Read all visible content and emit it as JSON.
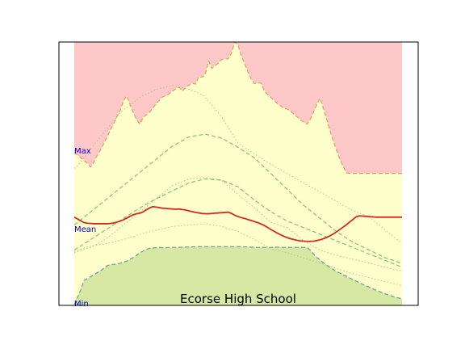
{
  "chart_data": {
    "type": "area",
    "title": "Ecorse High School",
    "xlabel": "",
    "ylabel": "",
    "grid": false,
    "ylim": [
      0,
      100
    ],
    "x": [
      0,
      1,
      2,
      3,
      4,
      5,
      6,
      7,
      8,
      9,
      10,
      11,
      12,
      13,
      14,
      15,
      16,
      17,
      18,
      19,
      20,
      21,
      22,
      23,
      24,
      25,
      26,
      27,
      28,
      29,
      30,
      31,
      32,
      33,
      34,
      35,
      36,
      37,
      38,
      39,
      40,
      41,
      42,
      43,
      44,
      45,
      46,
      47,
      48,
      49,
      50,
      51,
      52,
      53,
      54,
      55,
      56,
      57,
      58,
      59,
      60,
      61,
      62,
      63,
      64,
      65,
      66,
      67,
      68,
      69,
      70,
      71,
      72,
      73,
      74,
      75,
      76,
      77,
      78,
      79,
      80,
      81,
      82,
      83,
      84,
      85,
      86,
      87,
      88,
      89,
      90,
      91,
      92,
      93,
      94,
      95,
      96,
      97,
      98,
      99,
      100
    ],
    "y_labels": {
      "max": "Max",
      "mean": "Mean",
      "min": "Min"
    },
    "series": [
      {
        "role": "max",
        "values": [
          58,
          57,
          56,
          55,
          54,
          52.5,
          54.5,
          57,
          59,
          61.5,
          64,
          66.5,
          69,
          71.6,
          74,
          77.5,
          79.6,
          76.3,
          73.3,
          70.7,
          68.8,
          71.3,
          72.4,
          73.4,
          74.9,
          76.6,
          78,
          79.2,
          79.6,
          80.4,
          81.4,
          82.2,
          82.8,
          81.4,
          82.8,
          83.7,
          84.4,
          84,
          86.9,
          86.6,
          87.8,
          92.8,
          90,
          91,
          92,
          93.4,
          93.6,
          93.6,
          96,
          100,
          98.7,
          94.6,
          91.7,
          88.6,
          85.9,
          84.2,
          84.4,
          84.4,
          81.5,
          80,
          78.9,
          77.8,
          76.6,
          75.7,
          74.8,
          74.5,
          73.7,
          72.6,
          71.6,
          70.4,
          69.6,
          68.8,
          70.6,
          73.4,
          76.3,
          78.7,
          74.8,
          70.7,
          66.5,
          62.5,
          59.1,
          55.6,
          52.9,
          50.4,
          50.1,
          50.1,
          50.1,
          50.1,
          50.1,
          50.1,
          50.1,
          50.1,
          50.1,
          50.1,
          50.1,
          50.1,
          50.1,
          50.1,
          50.1,
          50.1,
          50.1
        ]
      },
      {
        "role": "p90",
        "values": [
          52,
          53,
          54.5,
          56,
          57.5,
          59.5,
          61,
          62.5,
          64,
          65.5,
          67,
          68.5,
          70,
          71.5,
          73,
          74.5,
          75,
          76,
          77,
          78,
          79,
          79.6,
          80.2,
          80.8,
          81.4,
          82,
          82.3,
          82.6,
          82.9,
          83.2,
          83.5,
          83.2,
          82.9,
          82.6,
          82.3,
          82,
          81.5,
          81,
          80.5,
          80,
          79,
          77.5,
          76,
          74.5,
          73,
          71.5,
          69.5,
          67.5,
          65.5,
          63.5,
          61.5,
          60.7,
          59.9,
          59.1,
          58.3,
          57.5,
          56.7,
          55.9,
          55.1,
          54.3,
          53.5,
          52.8,
          52.1,
          51.4,
          50.7,
          50,
          49.3,
          48.6,
          47.9,
          47.2,
          46.5,
          45.8,
          45.1,
          44.4,
          43.7,
          43,
          42.3,
          41.6,
          40.9,
          40.2,
          39.5,
          38.8,
          38.1,
          37.4,
          36.7,
          36,
          35.5,
          35,
          34.5,
          34,
          33.5,
          32.5,
          31.5,
          30.5,
          29.5,
          28.5,
          27.5,
          26.5,
          25.5,
          24.5,
          23.5
        ]
      },
      {
        "role": "p75",
        "values": [
          30.5,
          31.5,
          32.5,
          33.5,
          34.5,
          35.5,
          36.5,
          37.5,
          38.5,
          39.5,
          40.5,
          41.5,
          42.5,
          43.5,
          44.5,
          45.5,
          46.5,
          47.5,
          48.5,
          49.5,
          50.5,
          51.5,
          52.5,
          53.5,
          54.5,
          55.5,
          56.5,
          57.5,
          58.5,
          59.5,
          60.5,
          61.2,
          61.9,
          62.6,
          63.3,
          64,
          64.2,
          64.4,
          64.6,
          64.8,
          65,
          64.7,
          64.4,
          64.1,
          63.8,
          63.5,
          62.8,
          62.1,
          61.4,
          60.7,
          60,
          59.2,
          58.4,
          57.6,
          56.8,
          56,
          54.8,
          53.6,
          52.4,
          51.2,
          50,
          48.8,
          47.6,
          46.4,
          45.2,
          44,
          42.8,
          41.6,
          40.4,
          39.2,
          38,
          37,
          36,
          35,
          34,
          33,
          32,
          31,
          30,
          29,
          28,
          27.2,
          26.4,
          25.6,
          24.8,
          24,
          23.4,
          22.8,
          22.2,
          21.6,
          21,
          20.4,
          19.8,
          19.2,
          18.6,
          18,
          17.6,
          17.2,
          16.8,
          16.4,
          16
        ]
      },
      {
        "role": "p60",
        "values": [
          21,
          21.8,
          22.6,
          23.4,
          24.2,
          25,
          25.8,
          26.6,
          27.4,
          28.2,
          29,
          29.8,
          30.6,
          31.4,
          32.2,
          33,
          33.8,
          34.6,
          35.4,
          36.2,
          37,
          37.7,
          38.4,
          39.1,
          39.8,
          40.5,
          41.1,
          41.7,
          42.3,
          42.9,
          43.5,
          44.1,
          44.7,
          45.3,
          45.9,
          46.5,
          46.8,
          47.1,
          47.4,
          47.7,
          48,
          47.9,
          47.8,
          47.7,
          47.6,
          47.5,
          47,
          46.5,
          46,
          45.5,
          45,
          44,
          43,
          42,
          41,
          40,
          39.1,
          38.2,
          37.3,
          36.4,
          35.5,
          34.8,
          34.1,
          33.4,
          32.7,
          32,
          31.5,
          31,
          30.5,
          30,
          29.5,
          29,
          28.5,
          28,
          27.5,
          27,
          26.5,
          26,
          25.5,
          25,
          24.5,
          24,
          23.5,
          23,
          22.5,
          22,
          21.5,
          21,
          20.5,
          20,
          19.5,
          19,
          18.5,
          18,
          17.5,
          17,
          16.5,
          16,
          15.5,
          15,
          14.5
        ]
      },
      {
        "role": "mean",
        "values": [
          33.5,
          32.8,
          32.1,
          31.4,
          31.2,
          31.1,
          31.0,
          31.0,
          31.0,
          31.0,
          31.0,
          31.1,
          31.3,
          31.6,
          32.0,
          32.5,
          33.1,
          33.8,
          34.4,
          34.8,
          35.0,
          35.5,
          36.3,
          37.0,
          37.5,
          37.3,
          37.1,
          36.9,
          36.8,
          36.7,
          36.6,
          36.5,
          36.6,
          36.4,
          36.2,
          35.9,
          35.6,
          35.3,
          35.1,
          34.9,
          34.8,
          34.8,
          34.9,
          35.0,
          35.1,
          35.2,
          35.3,
          35.4,
          34.9,
          34.2,
          33.7,
          33.3,
          33.0,
          32.6,
          32.2,
          31.8,
          31.4,
          30.9,
          30.3,
          29.6,
          28.8,
          28.1,
          27.4,
          26.8,
          26.2,
          25.7,
          25.3,
          25.0,
          24.7,
          24.5,
          24.4,
          24.3,
          24.3,
          24.4,
          24.6,
          24.9,
          25.3,
          25.8,
          26.4,
          27.1,
          27.9,
          28.8,
          29.7,
          30.6,
          31.6,
          32.6,
          33.6,
          34.0,
          33.9,
          33.8,
          33.7,
          33.6,
          33.5,
          33.5,
          33.5,
          33.5,
          33.5,
          33.5,
          33.5,
          33.5,
          33.5
        ]
      },
      {
        "role": "p40",
        "values": [
          20,
          20.4,
          20.8,
          21.2,
          21.6,
          22,
          22.7,
          23.4,
          24.1,
          24.8,
          25.5,
          26.5,
          27.5,
          28.5,
          29.5,
          30.5,
          31.5,
          32.5,
          33.5,
          34.5,
          35.5,
          36.5,
          37.5,
          38.5,
          39.5,
          40.5,
          41.5,
          42.5,
          43.5,
          44.5,
          45.5,
          46,
          46.5,
          47,
          47.5,
          48,
          48.1,
          48.2,
          48.3,
          48.4,
          48.5,
          48.3,
          48.1,
          47.9,
          47.7,
          47.5,
          46.4,
          45.3,
          44.2,
          43.1,
          42,
          41,
          40,
          39,
          38,
          37,
          35.9,
          34.8,
          33.7,
          32.6,
          31.5,
          31.1,
          30.7,
          30.3,
          29.9,
          29.5,
          28.5,
          27.5,
          26.5,
          25.5,
          24.5,
          23.8,
          23.1,
          22.4,
          21.7,
          21,
          20.6,
          20.2,
          19.8,
          19.4,
          19,
          18.7,
          18.4,
          18.1,
          17.8,
          17.5,
          17.2,
          16.9,
          16.6,
          16.3,
          16,
          15.7,
          15.4,
          15.1,
          14.8,
          14.5,
          14.2,
          13.9,
          13.6,
          13.3,
          13
        ]
      },
      {
        "role": "p10",
        "values": [
          20.5,
          20.9,
          21.3,
          21.7,
          22.1,
          22.5,
          22.7,
          22.9,
          23.1,
          23.3,
          23.5,
          23.8,
          24.1,
          24.4,
          24.7,
          25,
          25.4,
          25.8,
          26.2,
          26.6,
          27,
          27.3,
          27.6,
          27.9,
          28.2,
          28.5,
          28.8,
          29.1,
          29.4,
          29.7,
          30,
          30.1,
          30.2,
          30.3,
          30.4,
          30.5,
          30.6,
          30.7,
          30.8,
          30.9,
          31,
          30.8,
          30.6,
          30.4,
          30.2,
          30,
          29.6,
          29.2,
          28.8,
          28.4,
          28,
          27.4,
          26.8,
          26.2,
          25.6,
          25,
          24.3,
          23.6,
          22.9,
          22.2,
          21.5,
          21.2,
          20.9,
          20.6,
          20.3,
          20,
          19.6,
          19.2,
          18.8,
          18.4,
          18,
          17.6,
          17.2,
          16.8,
          16.4,
          16,
          15.6,
          15.2,
          14.8,
          14.4,
          14,
          13.6,
          13.2,
          12.8,
          12.4,
          12,
          11.7,
          11.4,
          11.1,
          10.8,
          10.5,
          10.2,
          9.9,
          9.6,
          9.3,
          9,
          8.7,
          8.4,
          8.1,
          7.8,
          7.5
        ]
      },
      {
        "role": "min",
        "values": [
          0.3,
          3.0,
          6.0,
          9.5,
          10.2,
          10.9,
          11.6,
          12.4,
          13.2,
          14.1,
          15.0,
          15.5,
          15.6,
          15.6,
          16.0,
          16.4,
          16.8,
          17.5,
          18.2,
          19.0,
          20.0,
          20.6,
          21.3,
          21.7,
          21.8,
          21.9,
          22.0,
          21.9,
          21.9,
          22.0,
          22.0,
          22.0,
          22.0,
          22.1,
          22.1,
          22.2,
          22.2,
          22.2,
          22.3,
          22.3,
          22.3,
          22.3,
          22.3,
          22.3,
          22.3,
          22.3,
          22.3,
          22.3,
          22.3,
          22.3,
          22.3,
          22.3,
          22.2,
          22.2,
          22.1,
          22.1,
          22.0,
          22.0,
          22.0,
          22.0,
          22.0,
          22.1,
          22.1,
          22.0,
          22.0,
          22.0,
          22.0,
          22.0,
          22.0,
          22.0,
          22.0,
          22.0,
          21.0,
          19.5,
          18.2,
          17.2,
          16.2,
          15.3,
          14.4,
          13.6,
          12.9,
          12.3,
          11.6,
          11.0,
          10.4,
          9.8,
          9.2,
          8.6,
          8.0,
          7.4,
          6.9,
          6.3,
          5.8,
          5.3,
          4.8,
          4.3,
          3.9,
          3.5,
          3.1,
          2.8,
          2.5
        ]
      }
    ]
  }
}
